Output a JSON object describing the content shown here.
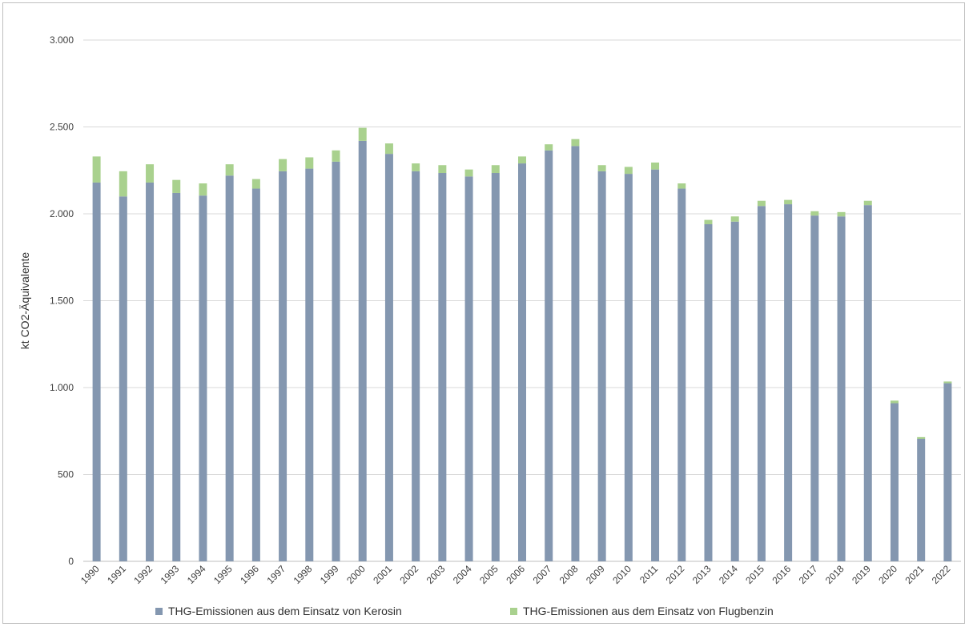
{
  "chart_data": {
    "type": "bar",
    "stacked": true,
    "ylabel": "kt CO2-Äquivalente",
    "ylim": [
      0,
      3000
    ],
    "yticks": [
      0,
      500,
      1000,
      1500,
      2000,
      2500,
      3000
    ],
    "yticklabels": [
      "0",
      "500",
      "1.000",
      "1.500",
      "2.000",
      "2.500",
      "3.000"
    ],
    "grid": true,
    "legend_position": "bottom",
    "categories": [
      "1990",
      "1991",
      "1992",
      "1993",
      "1994",
      "1995",
      "1996",
      "1997",
      "1998",
      "1999",
      "2000",
      "2001",
      "2002",
      "2003",
      "2004",
      "2005",
      "2006",
      "2007",
      "2008",
      "2009",
      "2010",
      "2011",
      "2012",
      "2013",
      "2014",
      "2015",
      "2016",
      "2017",
      "2018",
      "2019",
      "2020",
      "2021",
      "2022"
    ],
    "series": [
      {
        "name": "THG-Emissionen aus dem Einsatz von Kerosin",
        "color": "#8497b0",
        "values": [
          2180,
          2100,
          2180,
          2120,
          2105,
          2220,
          2145,
          2245,
          2260,
          2300,
          2420,
          2345,
          2245,
          2235,
          2215,
          2235,
          2290,
          2365,
          2390,
          2245,
          2230,
          2255,
          2145,
          1940,
          1955,
          2045,
          2055,
          1990,
          1985,
          2050,
          910,
          705,
          1025
        ]
      },
      {
        "name": "THG-Emissionen aus dem Einsatz von Flugbenzin",
        "color": "#a9d18e",
        "values": [
          150,
          145,
          105,
          75,
          70,
          65,
          55,
          70,
          65,
          65,
          75,
          60,
          45,
          45,
          40,
          45,
          40,
          35,
          40,
          35,
          40,
          40,
          30,
          25,
          30,
          30,
          25,
          25,
          25,
          25,
          15,
          10,
          10
        ]
      }
    ]
  }
}
